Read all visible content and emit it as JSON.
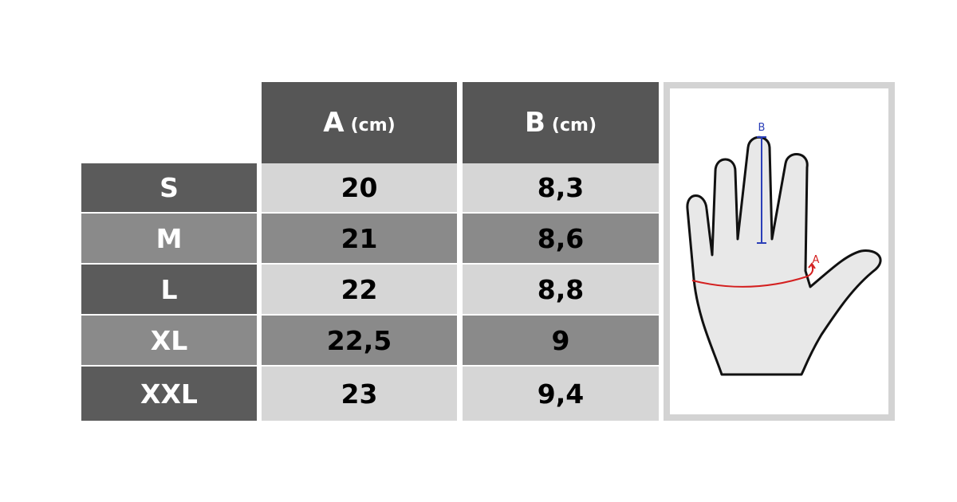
{
  "table": {
    "header": [
      {
        "label": "A",
        "unit": "(cm)"
      },
      {
        "label": "B",
        "unit": "(cm)"
      }
    ],
    "rows": [
      [
        "S",
        "20",
        "8,3"
      ],
      [
        "M",
        "21",
        "8,6"
      ],
      [
        "L",
        "22",
        "8,8"
      ],
      [
        "XL",
        "22,5",
        "9"
      ],
      [
        "XXL",
        "23",
        "9,4"
      ]
    ]
  },
  "diagram": {
    "labels": {
      "a": "A",
      "b": "B"
    }
  }
}
